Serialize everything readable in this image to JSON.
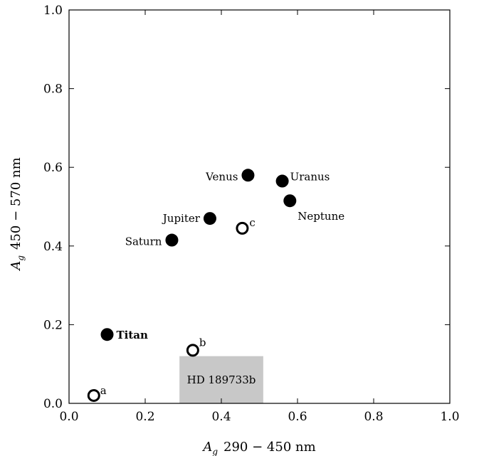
{
  "chart_data": {
    "type": "scatter",
    "title": "",
    "xlabel_prefix": "A",
    "xlabel_sub": "g",
    "xlabel_rest": "290 − 450 nm",
    "ylabel_prefix": "A",
    "ylabel_sub": "g",
    "ylabel_rest": "450 − 570 nm",
    "xlim": [
      0.0,
      1.0
    ],
    "ylim": [
      0.0,
      1.0
    ],
    "xticks": [
      0.0,
      0.2,
      0.4,
      0.6,
      0.8,
      1.0
    ],
    "yticks": [
      0.0,
      0.2,
      0.4,
      0.6,
      0.8,
      1.0
    ],
    "xtick_labels": [
      "0.0",
      "0.2",
      "0.4",
      "0.6",
      "0.8",
      "1.0"
    ],
    "ytick_labels": [
      "0.0",
      "0.2",
      "0.4",
      "0.6",
      "0.8",
      "1.0"
    ],
    "grid": false,
    "series": [
      {
        "marker": "filled",
        "points": [
          {
            "x": 0.47,
            "y": 0.58,
            "label": "Venus"
          },
          {
            "x": 0.56,
            "y": 0.565,
            "label": "Uranus"
          },
          {
            "x": 0.58,
            "y": 0.515,
            "label": "Neptune"
          },
          {
            "x": 0.37,
            "y": 0.47,
            "label": "Jupiter"
          },
          {
            "x": 0.27,
            "y": 0.415,
            "label": "Saturn"
          },
          {
            "x": 0.1,
            "y": 0.175,
            "label": "Titan"
          }
        ]
      },
      {
        "marker": "open",
        "points": [
          {
            "x": 0.455,
            "y": 0.445,
            "label": "c"
          },
          {
            "x": 0.325,
            "y": 0.135,
            "label": "b"
          },
          {
            "x": 0.065,
            "y": 0.02,
            "label": "a"
          }
        ]
      }
    ],
    "region": {
      "label": "HD 189733b",
      "x": [
        0.29,
        0.51
      ],
      "y": [
        0.0,
        0.12
      ],
      "color": "#c8c8c8"
    }
  }
}
